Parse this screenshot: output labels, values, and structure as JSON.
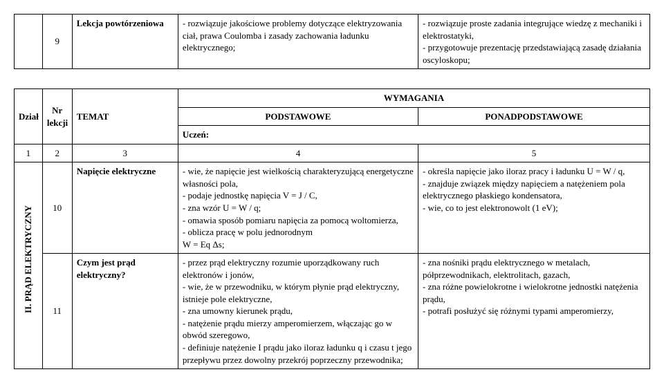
{
  "table1": {
    "row": {
      "nr": "9",
      "temat": "Lekcja powtórzeniowa",
      "podstawowe": "- rozwiązuje jakościowe problemy dotyczące elektryzowania ciał, prawa Coulomba i zasady zachowania ładunku elektrycznego;",
      "ponad": "- rozwiązuje proste zadania integrujące wiedzę z mechaniki i elektrostatyki,\n- przygotowuje prezentację przedstawiającą zasadę działania oscyloskopu;"
    }
  },
  "table2": {
    "headers": {
      "dzial": "Dział",
      "nr": "Nr lekcji",
      "temat": "TEMAT",
      "wymagania": "WYMAGANIA",
      "podstawowe": "PODSTAWOWE",
      "ponad": "PONADPODSTAWOWE",
      "uczen": "Uczeń:"
    },
    "num_row": {
      "c1": "1",
      "c2": "2",
      "c3": "3",
      "c4": "4",
      "c5": "5"
    },
    "section_label": "II. PRĄD ELEKTRYCZNY",
    "rows": [
      {
        "nr": "10",
        "temat": "Napięcie elektryczne",
        "podstawowe": "- wie, że napięcie jest wielkością charakteryzującą energetyczne własności pola,\n- podaje jednostkę napięcia V = J / C,\n- zna wzór U = W / q;\n- omawia sposób pomiaru napięcia za pomocą woltomierza,\n- oblicza pracę w polu jednorodnym\nW = Eq Δs;",
        "ponad": "- określa napięcie jako iloraz pracy i ładunku U = W / q,\n- znajduje związek między napięciem a natężeniem pola elektrycznego płaskiego kondensatora,\n- wie, co to jest elektronowolt (1 eV);"
      },
      {
        "nr": "11",
        "temat": "Czym jest prąd elektryczny?",
        "podstawowe": "- przez prąd elektryczny rozumie uporządkowany ruch elektronów i jonów,\n- wie, że w przewodniku, w którym płynie prąd elektryczny, istnieje pole elektryczne,\n- zna umowny kierunek prądu,\n- natężenie prądu mierzy amperomierzem, włączając go w obwód szeregowo,\n- definiuje natężenie I prądu jako iloraz ładunku q i czasu t jego przepływu przez dowolny przekrój poprzeczny przewodnika;",
        "ponad": "- zna nośniki prądu elektrycznego w metalach, półprzewodnikach, elektrolitach, gazach,\n- zna różne powielokrotne i wielokrotne jednostki natężenia prądu,\n- potrafi posłużyć się różnymi typami amperomierzy,"
      }
    ]
  }
}
